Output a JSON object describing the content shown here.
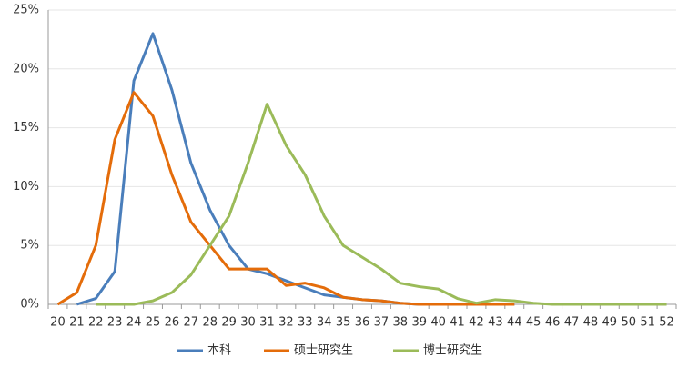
{
  "chart_data": {
    "type": "line",
    "categories": [
      "20",
      "21",
      "22",
      "23",
      "24",
      "25",
      "26",
      "27",
      "28",
      "29",
      "30",
      "31",
      "32",
      "33",
      "34",
      "35",
      "36",
      "37",
      "38",
      "39",
      "40",
      "41",
      "42",
      "43",
      "44",
      "45",
      "46",
      "47",
      "48",
      "49",
      "50",
      "51",
      "52"
    ],
    "series": [
      {
        "name": "本科",
        "color": "#4a7ebb",
        "values": [
          null,
          0,
          0.5,
          2.8,
          19,
          23,
          18.2,
          12,
          8,
          5,
          3,
          2.6,
          2,
          1.4,
          0.8,
          0.6,
          0.4,
          0.3,
          0.1,
          0,
          0,
          0,
          0,
          0,
          0,
          null,
          null,
          null,
          null,
          null,
          null,
          null,
          null
        ]
      },
      {
        "name": "硕士研究生",
        "color": "#e46c0a",
        "values": [
          0,
          1,
          5,
          14,
          18,
          16,
          11,
          7,
          5,
          3,
          3,
          3,
          1.6,
          1.8,
          1.4,
          0.6,
          0.4,
          0.3,
          0.1,
          0,
          0,
          0,
          0,
          0,
          0,
          null,
          null,
          null,
          null,
          null,
          null,
          null,
          null
        ]
      },
      {
        "name": "博士研究生",
        "color": "#9bbb59",
        "values": [
          null,
          null,
          0,
          0,
          0,
          0.3,
          1,
          2.5,
          5,
          7.5,
          12,
          17,
          13.5,
          11,
          7.5,
          5,
          4,
          3,
          1.8,
          1.5,
          1.3,
          0.5,
          0.1,
          0.4,
          0.3,
          0.1,
          0,
          0,
          0,
          0,
          0,
          0,
          0
        ]
      }
    ],
    "ylim": [
      0,
      25
    ],
    "yticks": [
      {
        "value": 0,
        "label": "0%"
      },
      {
        "value": 5,
        "label": "5%"
      },
      {
        "value": 10,
        "label": "10%"
      },
      {
        "value": 15,
        "label": "15%"
      },
      {
        "value": 20,
        "label": "20%"
      },
      {
        "value": 25,
        "label": "25%"
      }
    ],
    "grid": true,
    "legend": "bottom"
  }
}
